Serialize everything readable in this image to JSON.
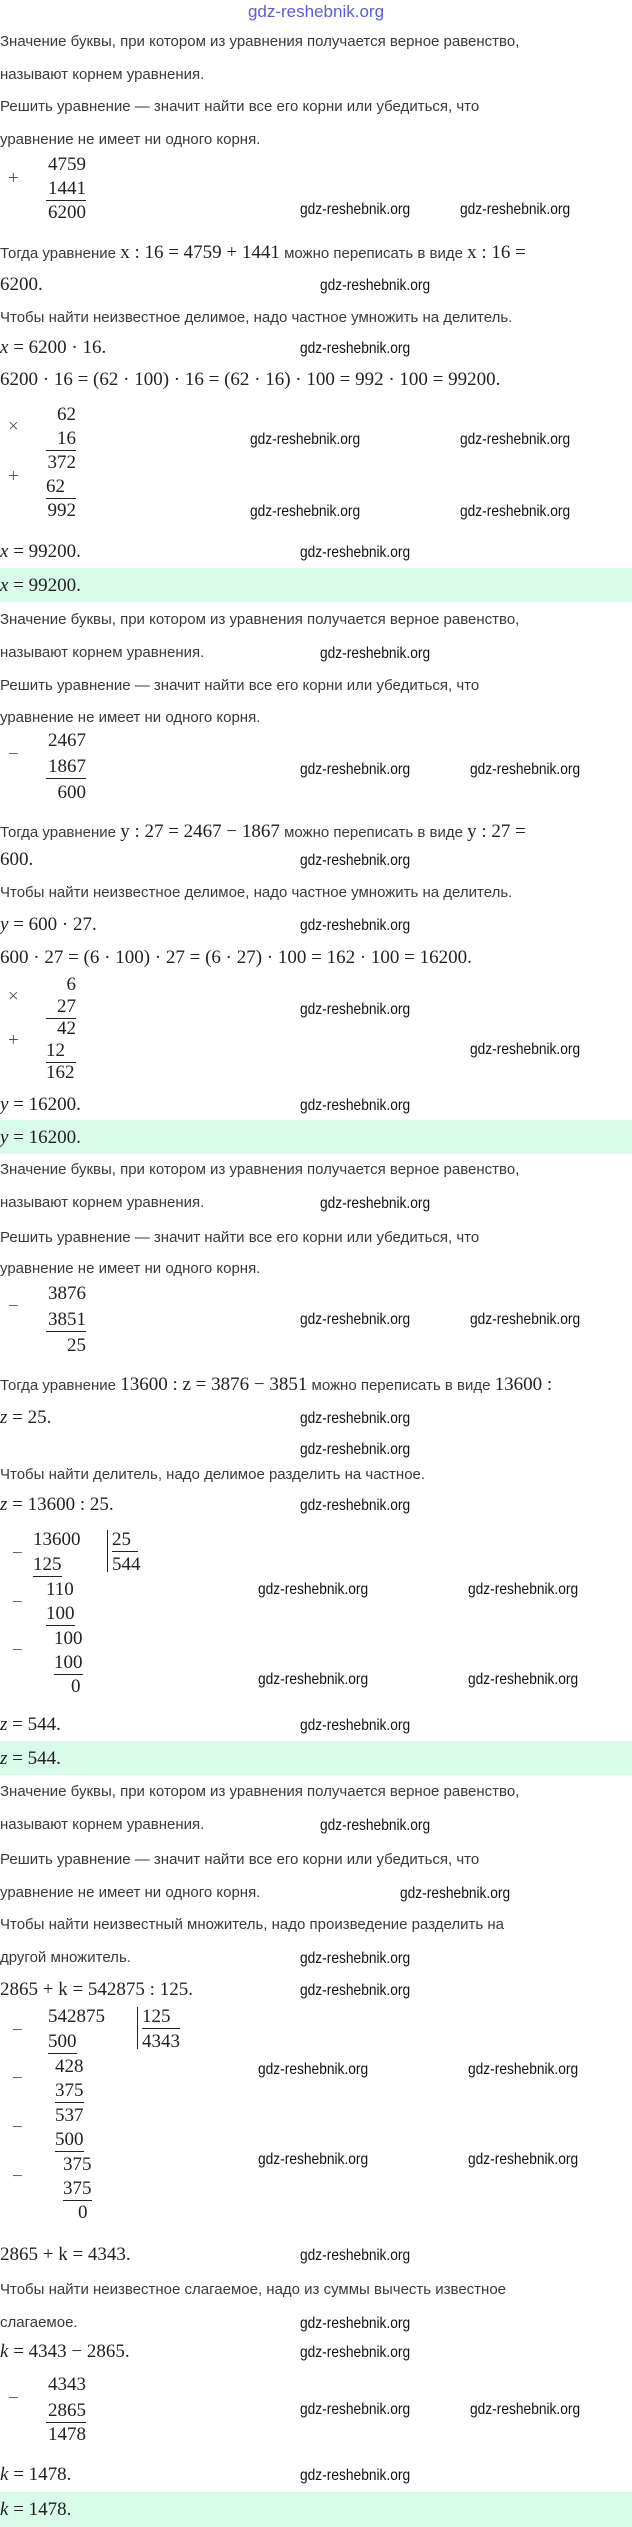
{
  "header_watermark": "gdz-reshebnik.org",
  "watermark": "gdz-reshebnik.org",
  "colors": {
    "answer_bg": "#d9fbe9",
    "header_watermark": "#5b5bdc"
  },
  "definition": [
    "Значение буквы, при котором из уравнения получается верное равенство,",
    "называют корнем уравнения.",
    "Решить уравнение — значит найти все его корни или убедиться, что",
    "уравнение не имеет ни одного корня."
  ],
  "s1": {
    "calc": {
      "op": "+",
      "a": "4759",
      "b": "1441",
      "r": "6200"
    },
    "rewrite": {
      "pre": "Тогда уравнение ",
      "m1": "x : 16 = 4759 + 1441",
      "mid": " можно переписать в виде ",
      "m2": "x : 16 =",
      "cont": "6200."
    },
    "rule": "Чтобы найти неизвестное делимое, надо частное умножить на делитель.",
    "eq1": {
      "var": "x",
      "rest": " = 6200 · 16."
    },
    "expand": "6200 · 16 = (62 · 100) · 16 = (62 · 16) · 100 = 992 · 100 = 99200.",
    "mult": {
      "op1": "×",
      "a": "62",
      "b": "16",
      "p1": "372",
      "op2": "+",
      "p2": "62",
      "r": "992"
    },
    "result": {
      "var": "x",
      "rest": " = 99200."
    },
    "answer": {
      "var": "x",
      "rest": " = 99200."
    }
  },
  "s2": {
    "calc": {
      "op": "−",
      "a": "2467",
      "b": "1867",
      "r": "600"
    },
    "rewrite": {
      "pre": "Тогда уравнение ",
      "m1": "y : 27 = 2467 − 1867",
      "mid": " можно переписать в виде ",
      "m2": "y : 27 =",
      "cont": "600."
    },
    "rule": "Чтобы найти неизвестное делимое, надо частное умножить на делитель.",
    "eq1": {
      "var": "y",
      "rest": " = 600 · 27."
    },
    "expand": "600 · 27 = (6 · 100) · 27 = (6 · 27) · 100 = 162 · 100 = 16200.",
    "mult": {
      "op1": "×",
      "a": "6",
      "b": "27",
      "p1": "42",
      "op2": "+",
      "p2": "12",
      "r": "162"
    },
    "result": {
      "var": "y",
      "rest": " = 16200."
    },
    "answer": {
      "var": "y",
      "rest": " = 16200."
    }
  },
  "s3": {
    "calc": {
      "op": "−",
      "a": "3876",
      "b": "3851",
      "r": "25"
    },
    "rewrite": {
      "pre": "Тогда уравнение ",
      "m1": "13600 : z = 3876 − 3851",
      "mid": " можно переписать в виде ",
      "m2": "13600 :",
      "cont_var": "z",
      "cont": " = 25."
    },
    "rule": "Чтобы найти делитель, надо делимое разделить на частное.",
    "eq1": {
      "var": "z",
      "rest": " = 13600 : 25."
    },
    "division": {
      "dividend": "13600",
      "divisor": "25",
      "quotient": "544",
      "steps": [
        "125",
        "110",
        "100",
        "100",
        "100",
        "0"
      ],
      "op": "−"
    },
    "result": {
      "var": "z",
      "rest": " = 544."
    },
    "answer": {
      "var": "z",
      "rest": " = 544."
    }
  },
  "s4": {
    "rule1": [
      "Чтобы найти неизвестный множитель, надо произведение разделить на",
      "другой множитель."
    ],
    "eq1": "2865 + k = 542875 : 125.",
    "division": {
      "dividend": "542875",
      "divisor": "125",
      "quotient": "4343",
      "steps": [
        "500",
        "428",
        "375",
        "537",
        "500",
        "375",
        "375",
        "0"
      ],
      "op": "−"
    },
    "eq2": "2865 + k = 4343.",
    "rule2": [
      "Чтобы найти неизвестное слагаемое, надо из суммы вычесть известное",
      "слагаемое."
    ],
    "eq3": {
      "var": "k",
      "rest": " = 4343 − 2865."
    },
    "calc": {
      "op": "−",
      "a": "4343",
      "b": "2865",
      "r": "1478"
    },
    "result": {
      "var": "k",
      "rest": " = 1478."
    },
    "answer": {
      "var": "k",
      "rest": " = 1478."
    }
  }
}
